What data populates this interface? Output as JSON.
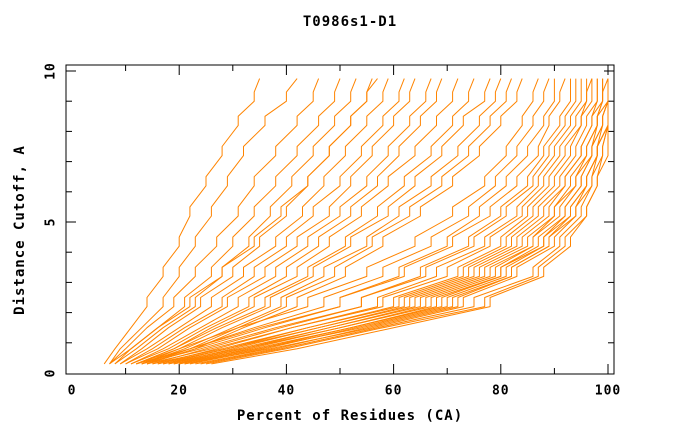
{
  "title": "T0986s1-D1",
  "colors": {
    "line": "#ff8400",
    "axis": "#000000",
    "text": "#000000",
    "background": "#ffffff"
  },
  "chart_data": {
    "type": "line",
    "title": "T0986s1-D1",
    "xlabel": "Percent of Residues (CA)",
    "ylabel": "Distance Cutoff, A",
    "xlim": [
      0,
      100
    ],
    "ylim": [
      0,
      10
    ],
    "grid": false,
    "legend_position": "none",
    "x_tick_minor": [
      10,
      30,
      50,
      70,
      90
    ],
    "x_tick_major": [
      20,
      40,
      60,
      80,
      100
    ],
    "x_tick_labels": [
      {
        "value": 0,
        "label": "0"
      },
      {
        "value": 20,
        "label": "20"
      },
      {
        "value": 40,
        "label": "40"
      },
      {
        "value": 60,
        "label": "60"
      },
      {
        "value": 80,
        "label": "80"
      },
      {
        "value": 100,
        "label": "100"
      }
    ],
    "y_tick_minor": [
      1,
      2,
      3,
      4,
      6,
      7,
      8,
      9
    ],
    "y_tick_major": [
      5,
      10
    ],
    "y_tick_labels": [
      {
        "value": 0,
        "label": "0"
      },
      {
        "value": 5,
        "label": "5"
      },
      {
        "value": 10,
        "label": "10"
      }
    ],
    "series_color": "#ff8400",
    "y_levels": [
      0.3,
      0.8,
      1.5,
      2.5,
      3.5,
      4.5,
      5.5,
      6.5,
      7.5,
      8.5,
      9.3,
      9.75
    ],
    "series_percent_at_levels": [
      [
        6,
        8,
        11,
        14,
        17,
        20,
        22,
        25,
        28,
        31,
        34,
        35
      ],
      [
        7,
        9,
        13,
        17,
        20,
        23,
        26,
        29,
        32,
        36,
        40,
        42
      ],
      [
        7,
        10,
        14,
        19,
        23,
        27,
        31,
        34,
        38,
        42,
        45,
        46
      ],
      [
        8,
        11,
        16,
        21,
        26,
        30,
        34,
        38,
        42,
        46,
        49,
        50
      ],
      [
        8,
        12,
        17,
        23,
        28,
        33,
        37,
        41,
        45,
        49,
        52,
        53
      ],
      [
        9,
        13,
        18,
        24,
        30,
        35,
        40,
        44,
        48,
        52,
        55,
        56
      ],
      [
        7,
        11,
        16,
        22,
        28,
        34,
        39,
        44,
        48,
        52,
        55,
        57
      ],
      [
        9,
        14,
        20,
        26,
        32,
        38,
        43,
        47,
        51,
        55,
        58,
        59
      ],
      [
        10,
        15,
        21,
        28,
        34,
        40,
        45,
        50,
        54,
        58,
        61,
        62
      ],
      [
        10,
        16,
        22,
        29,
        36,
        42,
        48,
        52,
        56,
        60,
        63,
        64
      ],
      [
        11,
        17,
        24,
        31,
        38,
        44,
        50,
        55,
        59,
        63,
        66,
        67
      ],
      [
        11,
        18,
        25,
        33,
        40,
        46,
        52,
        57,
        61,
        65,
        68,
        69
      ],
      [
        12,
        19,
        26,
        34,
        42,
        48,
        54,
        59,
        64,
        68,
        71,
        72
      ],
      [
        12,
        19,
        27,
        36,
        44,
        51,
        57,
        62,
        67,
        71,
        74,
        75
      ],
      [
        13,
        20,
        28,
        37,
        45,
        52,
        59,
        64,
        69,
        73,
        77,
        78
      ],
      [
        13,
        21,
        30,
        39,
        47,
        55,
        61,
        67,
        72,
        76,
        79,
        80
      ],
      [
        14,
        22,
        31,
        40,
        49,
        56,
        63,
        69,
        74,
        78,
        81,
        82
      ],
      [
        14,
        23,
        32,
        42,
        51,
        58,
        65,
        71,
        76,
        80,
        83,
        84
      ],
      [
        12,
        20,
        31,
        44,
        55,
        64,
        71,
        77,
        81,
        84,
        86,
        87
      ],
      [
        13,
        22,
        34,
        47,
        58,
        67,
        74,
        79,
        83,
        86,
        88,
        89
      ],
      [
        14,
        23,
        36,
        50,
        61,
        70,
        76,
        81,
        85,
        88,
        90,
        90
      ],
      [
        12,
        22,
        35,
        50,
        62,
        71,
        78,
        83,
        87,
        89,
        91,
        92
      ],
      [
        15,
        25,
        39,
        54,
        65,
        74,
        80,
        85,
        88,
        91,
        93,
        93
      ],
      [
        13,
        24,
        38,
        54,
        66,
        75,
        81,
        86,
        89,
        92,
        94,
        94
      ],
      [
        16,
        27,
        41,
        57,
        68,
        77,
        83,
        87,
        90,
        93,
        95,
        95
      ],
      [
        14,
        26,
        41,
        58,
        70,
        78,
        84,
        88,
        91,
        94,
        96,
        96
      ],
      [
        17,
        29,
        44,
        60,
        72,
        80,
        85,
        89,
        92,
        95,
        96,
        97
      ],
      [
        15,
        28,
        44,
        61,
        73,
        81,
        86,
        90,
        93,
        95,
        97,
        97
      ],
      [
        18,
        30,
        46,
        62,
        74,
        82,
        87,
        91,
        94,
        96,
        98,
        98
      ],
      [
        16,
        29,
        46,
        63,
        75,
        83,
        88,
        92,
        95,
        97,
        98,
        98
      ],
      [
        19,
        32,
        48,
        64,
        76,
        84,
        89,
        92,
        95,
        97,
        99,
        99
      ],
      [
        17,
        31,
        48,
        65,
        77,
        85,
        90,
        93,
        96,
        98,
        99,
        99
      ],
      [
        20,
        33,
        50,
        66,
        78,
        86,
        90,
        94,
        96,
        98,
        99,
        100
      ],
      [
        18,
        32,
        50,
        67,
        79,
        86,
        91,
        94,
        97,
        98,
        100,
        100
      ],
      [
        21,
        35,
        52,
        68,
        80,
        87,
        92,
        95,
        97,
        99,
        100,
        100
      ],
      [
        19,
        34,
        52,
        69,
        80,
        88,
        92,
        95,
        97,
        99,
        100,
        100
      ],
      [
        22,
        36,
        53,
        70,
        81,
        88,
        93,
        96,
        98,
        99,
        100,
        100
      ],
      [
        20,
        35,
        54,
        71,
        82,
        89,
        93,
        96,
        98,
        100,
        100,
        100
      ],
      [
        23,
        38,
        55,
        72,
        82,
        89,
        94,
        96,
        98,
        100,
        100,
        100
      ],
      [
        21,
        37,
        56,
        73,
        83,
        90,
        94,
        97,
        98,
        100,
        100,
        100
      ],
      [
        24,
        39,
        57,
        75,
        86,
        91,
        95,
        97,
        99,
        100,
        100,
        100
      ],
      [
        25,
        40,
        58,
        77,
        87,
        92,
        96,
        98,
        99,
        100,
        100,
        100
      ],
      [
        26,
        42,
        60,
        78,
        88,
        93,
        96,
        98,
        100,
        100,
        100,
        100
      ]
    ]
  }
}
